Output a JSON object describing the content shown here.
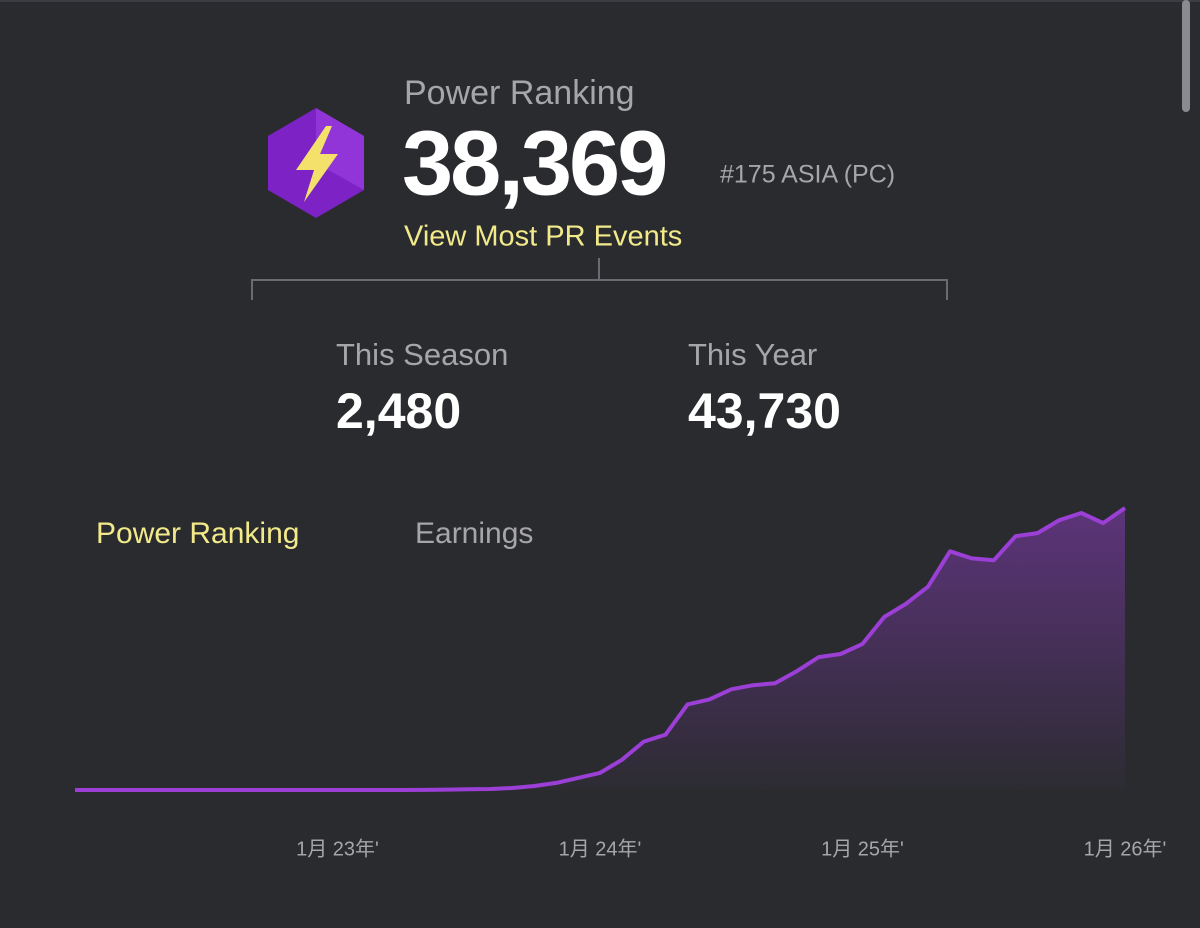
{
  "header": {
    "title": "Power Ranking",
    "value": "38,369",
    "rank": "#175 ASIA (PC)",
    "link": "View Most PR Events"
  },
  "stats": [
    {
      "label": "This Season",
      "value": "2,480"
    },
    {
      "label": "This Year",
      "value": "43,730"
    }
  ],
  "tabs": [
    "Power Ranking",
    "Earnings"
  ],
  "chart_data": {
    "type": "area",
    "color": "#9b3fd6",
    "categories": [
      null,
      null,
      null,
      null,
      null,
      null,
      null,
      null,
      null,
      null,
      null,
      null,
      "1月 23年'",
      null,
      null,
      null,
      null,
      null,
      null,
      null,
      null,
      null,
      null,
      null,
      "1月 24年'",
      null,
      null,
      null,
      null,
      null,
      null,
      null,
      null,
      null,
      null,
      null,
      "1月 25年'",
      null,
      null,
      null,
      null,
      null,
      null,
      null,
      null,
      null,
      null,
      null,
      "1月 26年'"
    ],
    "values": [
      0,
      0,
      0,
      0,
      0,
      0,
      0,
      0,
      0,
      0,
      0,
      0,
      0,
      0,
      0,
      0,
      20,
      50,
      100,
      140,
      270,
      550,
      960,
      1640,
      2330,
      4110,
      6580,
      7540,
      11650,
      12330,
      13700,
      14250,
      14520,
      16170,
      18080,
      18500,
      19870,
      23560,
      25350,
      27670,
      32470,
      31510,
      31240,
      34520,
      34940,
      36720,
      37680,
      36310,
      38360
    ]
  }
}
